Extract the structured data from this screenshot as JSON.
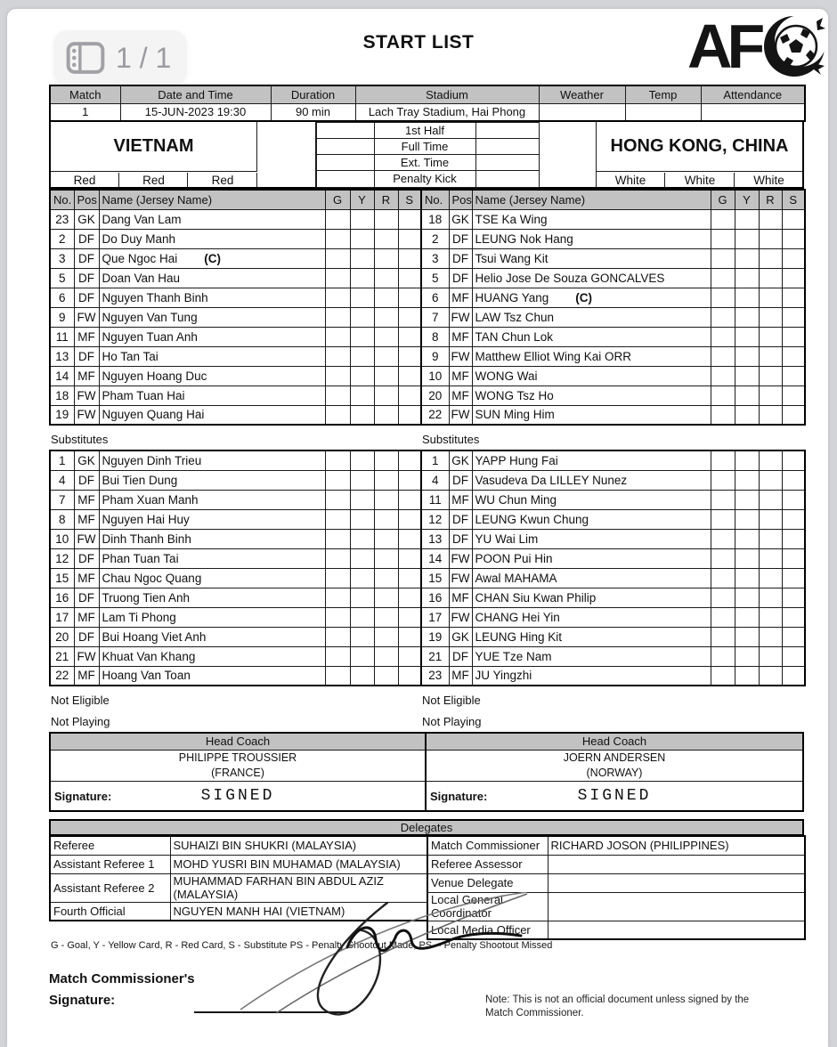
{
  "viewer": {
    "page_indicator": "1 / 1"
  },
  "header": {
    "title": "START LIST",
    "logo": "AFC"
  },
  "match_info": {
    "headers": [
      "Match",
      "Date and Time",
      "Duration",
      "Stadium",
      "Weather",
      "Temp",
      "Attendance"
    ],
    "values": [
      "1",
      "15-JUN-2023 19:30",
      "90 min",
      "Lach Tray Stadium, Hai Phong",
      "",
      "",
      ""
    ]
  },
  "scoreboard": {
    "rows": [
      "1st Half",
      "Full Time",
      "Ext. Time",
      "Penalty Kick"
    ]
  },
  "table_headers": {
    "no": "No.",
    "pos": "Pos",
    "name": "Name (Jersey Name)",
    "g": "G",
    "y": "Y",
    "r": "R",
    "s": "S"
  },
  "labels": {
    "substitutes": "Substitutes",
    "not_eligible": "Not Eligible",
    "not_playing": "Not Playing",
    "head_coach": "Head Coach",
    "signature": "Signature:",
    "signed": "SIGNED",
    "delegates": "Delegates"
  },
  "teams": {
    "home": {
      "name": "VIETNAM",
      "kit_colors": [
        "Red",
        "Red",
        "Red"
      ],
      "players": [
        {
          "no": "23",
          "pos": "GK",
          "name": "Dang Van Lam",
          "captain": false
        },
        {
          "no": "2",
          "pos": "DF",
          "name": "Do Duy Manh",
          "captain": false
        },
        {
          "no": "3",
          "pos": "DF",
          "name": "Que Ngoc Hai",
          "captain": true
        },
        {
          "no": "5",
          "pos": "DF",
          "name": "Doan Van Hau",
          "captain": false
        },
        {
          "no": "6",
          "pos": "DF",
          "name": "Nguyen Thanh Binh",
          "captain": false
        },
        {
          "no": "9",
          "pos": "FW",
          "name": "Nguyen Van Tung",
          "captain": false
        },
        {
          "no": "11",
          "pos": "MF",
          "name": "Nguyen Tuan Anh",
          "captain": false
        },
        {
          "no": "13",
          "pos": "DF",
          "name": "Ho Tan Tai",
          "captain": false
        },
        {
          "no": "14",
          "pos": "MF",
          "name": "Nguyen Hoang Duc",
          "captain": false
        },
        {
          "no": "18",
          "pos": "FW",
          "name": "Pham Tuan Hai",
          "captain": false
        },
        {
          "no": "19",
          "pos": "FW",
          "name": "Nguyen Quang Hai",
          "captain": false
        }
      ],
      "substitutes": [
        {
          "no": "1",
          "pos": "GK",
          "name": "Nguyen Dinh Trieu",
          "captain": false
        },
        {
          "no": "4",
          "pos": "DF",
          "name": "Bui Tien Dung",
          "captain": false
        },
        {
          "no": "7",
          "pos": "MF",
          "name": "Pham Xuan Manh",
          "captain": false
        },
        {
          "no": "8",
          "pos": "MF",
          "name": "Nguyen Hai Huy",
          "captain": false
        },
        {
          "no": "10",
          "pos": "FW",
          "name": "Dinh Thanh Binh",
          "captain": false
        },
        {
          "no": "12",
          "pos": "DF",
          "name": "Phan Tuan Tai",
          "captain": false
        },
        {
          "no": "15",
          "pos": "MF",
          "name": "Chau Ngoc Quang",
          "captain": false
        },
        {
          "no": "16",
          "pos": "DF",
          "name": "Truong Tien Anh",
          "captain": false
        },
        {
          "no": "17",
          "pos": "MF",
          "name": "Lam Ti Phong",
          "captain": false
        },
        {
          "no": "20",
          "pos": "DF",
          "name": "Bui Hoang Viet Anh",
          "captain": false
        },
        {
          "no": "21",
          "pos": "FW",
          "name": "Khuat Van Khang",
          "captain": false
        },
        {
          "no": "22",
          "pos": "MF",
          "name": "Hoang Van Toan",
          "captain": false
        }
      ],
      "coach": {
        "name": "PHILIPPE TROUSSIER",
        "country": "(FRANCE)"
      }
    },
    "away": {
      "name": "HONG KONG, CHINA",
      "kit_colors": [
        "White",
        "White",
        "White"
      ],
      "players": [
        {
          "no": "18",
          "pos": "GK",
          "name": "TSE Ka Wing",
          "captain": false
        },
        {
          "no": "2",
          "pos": "DF",
          "name": "LEUNG Nok Hang",
          "captain": false
        },
        {
          "no": "3",
          "pos": "DF",
          "name": "Tsui Wang Kit",
          "captain": false
        },
        {
          "no": "5",
          "pos": "DF",
          "name": "Helio Jose De Souza GONCALVES",
          "captain": false
        },
        {
          "no": "6",
          "pos": "MF",
          "name": "HUANG Yang",
          "captain": true
        },
        {
          "no": "7",
          "pos": "FW",
          "name": "LAW Tsz Chun",
          "captain": false
        },
        {
          "no": "8",
          "pos": "MF",
          "name": "TAN Chun Lok",
          "captain": false
        },
        {
          "no": "9",
          "pos": "FW",
          "name": "Matthew Elliot Wing Kai ORR",
          "captain": false
        },
        {
          "no": "10",
          "pos": "MF",
          "name": "WONG Wai",
          "captain": false
        },
        {
          "no": "20",
          "pos": "MF",
          "name": "WONG Tsz Ho",
          "captain": false
        },
        {
          "no": "22",
          "pos": "FW",
          "name": "SUN Ming Him",
          "captain": false
        }
      ],
      "substitutes": [
        {
          "no": "1",
          "pos": "GK",
          "name": "YAPP Hung Fai",
          "captain": false
        },
        {
          "no": "4",
          "pos": "DF",
          "name": "Vasudeva Da LILLEY Nunez",
          "captain": false
        },
        {
          "no": "11",
          "pos": "MF",
          "name": "WU Chun Ming",
          "captain": false
        },
        {
          "no": "12",
          "pos": "DF",
          "name": "LEUNG Kwun Chung",
          "captain": false
        },
        {
          "no": "13",
          "pos": "DF",
          "name": "YU Wai Lim",
          "captain": false
        },
        {
          "no": "14",
          "pos": "FW",
          "name": "POON Pui Hin",
          "captain": false
        },
        {
          "no": "15",
          "pos": "FW",
          "name": "Awal MAHAMA",
          "captain": false
        },
        {
          "no": "16",
          "pos": "MF",
          "name": "CHAN Siu Kwan Philip",
          "captain": false
        },
        {
          "no": "17",
          "pos": "FW",
          "name": "CHANG Hei Yin",
          "captain": false
        },
        {
          "no": "19",
          "pos": "GK",
          "name": "LEUNG Hing Kit",
          "captain": false
        },
        {
          "no": "21",
          "pos": "DF",
          "name": "YUE Tze Nam",
          "captain": false
        },
        {
          "no": "23",
          "pos": "MF",
          "name": "JU Yingzhi",
          "captain": false
        }
      ],
      "coach": {
        "name": "JOERN ANDERSEN",
        "country": "(NORWAY)"
      }
    }
  },
  "delegates": {
    "left": [
      {
        "label": "Referee",
        "value": "SUHAIZI BIN SHUKRI (MALAYSIA)",
        "tall": false
      },
      {
        "label": "Assistant Referee 1",
        "value": "MOHD YUSRI BIN MUHAMAD (MALAYSIA)",
        "tall": false
      },
      {
        "label": "Assistant Referee 2",
        "value": "MUHAMMAD FARHAN BIN ABDUL AZIZ (MALAYSIA)",
        "tall": true
      },
      {
        "label": "Fourth Official",
        "value": "NGUYEN MANH HAI (VIETNAM)",
        "tall": false
      }
    ],
    "right": [
      {
        "label": "Match Commissioner",
        "value": "RICHARD JOSON (PHILIPPINES)",
        "tall": false
      },
      {
        "label": "Referee Assessor",
        "value": "",
        "tall": false
      },
      {
        "label": "Venue Delegate",
        "value": "",
        "tall": false
      },
      {
        "label": "Local General Coordinator",
        "value": "",
        "tall": true
      },
      {
        "label": "Local Media Officer",
        "value": "",
        "tall": false
      }
    ]
  },
  "footer": {
    "legend": "G - Goal, Y - Yellow Card, R - Red Card, S - Substitute PS - Penalty Shootout Made, PS- - Penalty Shootout Missed",
    "mc_signature_line1": "Match Commissioner's",
    "mc_signature_line2": "Signature:",
    "note": "Note: This is not an official document unless signed by the Match Commissioner."
  },
  "colors": {
    "header_fill": "#c2c2c2",
    "paper": "#ffffff",
    "viewer_bg": "#d3d4d8"
  }
}
